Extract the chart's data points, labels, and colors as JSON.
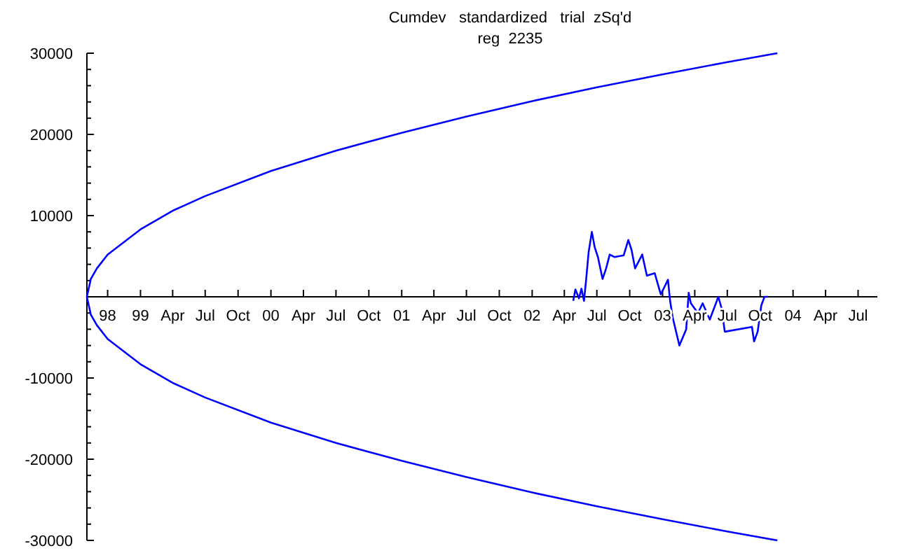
{
  "chart_data": {
    "type": "line",
    "title": "Cumdev   standardized   trial  zSq'd",
    "subtitle": "reg  2235",
    "xlim": [
      "1998-08-04",
      "2004-08-24"
    ],
    "xticks": [
      {
        "value": "1998-10-01",
        "label": "98"
      },
      {
        "value": "1999-01-01",
        "label": "99"
      },
      {
        "value": "1999-04-01",
        "label": "Apr"
      },
      {
        "value": "1999-07-01",
        "label": "Jul"
      },
      {
        "value": "1999-10-01",
        "label": "Oct"
      },
      {
        "value": "2000-01-01",
        "label": "00"
      },
      {
        "value": "2000-04-01",
        "label": "Apr"
      },
      {
        "value": "2000-07-01",
        "label": "Jul"
      },
      {
        "value": "2000-10-01",
        "label": "Oct"
      },
      {
        "value": "2001-01-01",
        "label": "01"
      },
      {
        "value": "2001-04-01",
        "label": "Apr"
      },
      {
        "value": "2001-07-01",
        "label": "Jul"
      },
      {
        "value": "2001-10-01",
        "label": "Oct"
      },
      {
        "value": "2002-01-01",
        "label": "02"
      },
      {
        "value": "2002-04-01",
        "label": "Apr"
      },
      {
        "value": "2002-07-01",
        "label": "Jul"
      },
      {
        "value": "2002-10-01",
        "label": "Oct"
      },
      {
        "value": "2003-01-01",
        "label": "03"
      },
      {
        "value": "2003-04-01",
        "label": "Apr"
      },
      {
        "value": "2003-07-01",
        "label": "Jul"
      },
      {
        "value": "2003-10-01",
        "label": "Oct"
      },
      {
        "value": "2004-01-01",
        "label": "04"
      },
      {
        "value": "2004-04-01",
        "label": "Apr"
      },
      {
        "value": "2004-07-01",
        "label": "Jul"
      }
    ],
    "ylim": [
      -30000,
      30000
    ],
    "yticks": [
      -30000,
      {
        "value": -28000,
        "label": null
      },
      {
        "value": -26000,
        "label": null
      },
      {
        "value": -24000,
        "label": null
      },
      {
        "value": -22000,
        "label": null
      },
      -20000,
      {
        "value": -18000,
        "label": null
      },
      {
        "value": -16000,
        "label": null
      },
      {
        "value": -14000,
        "label": null
      },
      {
        "value": -12000,
        "label": null
      },
      -10000,
      {
        "value": -8000,
        "label": null
      },
      {
        "value": -6000,
        "label": null
      },
      {
        "value": -4000,
        "label": null
      },
      {
        "value": -2000,
        "label": null
      },
      {
        "value": 0,
        "label": null
      },
      {
        "value": 2000,
        "label": null
      },
      {
        "value": 4000,
        "label": null
      },
      {
        "value": 6000,
        "label": null
      },
      {
        "value": 8000,
        "label": null
      },
      10000,
      {
        "value": 12000,
        "label": null
      },
      {
        "value": 14000,
        "label": null
      },
      {
        "value": 16000,
        "label": null
      },
      {
        "value": 18000,
        "label": null
      },
      20000,
      {
        "value": 22000,
        "label": null
      },
      {
        "value": 24000,
        "label": null
      },
      {
        "value": 26000,
        "label": null
      },
      {
        "value": 28000,
        "label": null
      },
      30000
    ],
    "line_style": "solid",
    "series": [
      {
        "color": "#0000ff",
        "x": [
          "2003-11-18",
          "2003-07-01",
          "2003-01-01",
          "2002-07-01",
          "2002-01-01",
          "2001-07-01",
          "2001-01-01",
          "2000-07-01",
          "2000-01-01",
          "1999-07-01",
          "1999-04-01",
          "1999-01-01",
          "1998-10-01",
          "1998-09-01",
          "1998-08-15",
          "1998-08-04",
          "1998-08-15",
          "1998-09-01",
          "1998-10-01",
          "1999-01-01",
          "1999-04-01",
          "1999-07-01",
          "2000-01-01",
          "2000-07-01",
          "2001-01-01",
          "2001-07-01",
          "2002-01-01",
          "2002-07-01",
          "2003-01-01",
          "2003-07-01",
          "2003-11-18"
        ],
        "values": [
          -30000,
          -28900,
          -27400,
          -25800,
          -24100,
          -22200,
          -20200,
          -18000,
          -15500,
          -12400,
          -10600,
          -8300,
          -5200,
          -3500,
          -2200,
          0,
          2200,
          3500,
          5200,
          8300,
          10600,
          12400,
          15500,
          18000,
          20200,
          22200,
          24100,
          25800,
          27400,
          28900,
          30000
        ]
      },
      {
        "color": "#0000ff",
        "x": [
          "2002-04-26",
          "2002-05-02",
          "2002-05-12",
          "2002-05-19",
          "2002-05-26",
          "2002-06-01",
          "2002-06-08",
          "2002-06-17",
          "2002-06-25",
          "2002-07-04",
          "2002-07-17",
          "2002-07-27",
          "2002-08-06",
          "2002-08-19",
          "2002-09-14",
          "2002-09-27",
          "2002-10-06",
          "2002-10-16",
          "2002-11-05",
          "2002-11-18",
          "2002-12-10",
          "2002-12-27",
          "2003-01-16",
          "2003-01-22",
          "2003-01-29",
          "2003-02-17",
          "2003-03-08",
          "2003-03-15",
          "2003-03-21",
          "2003-04-10",
          "2003-04-23",
          "2003-05-13",
          "2003-06-06",
          "2003-06-15",
          "2003-06-24",
          "2003-09-08",
          "2003-09-14",
          "2003-09-24",
          "2003-10-04",
          "2003-10-13",
          "2003-10-23"
        ],
        "values": [
          -500,
          900,
          -200,
          1000,
          -500,
          2100,
          5500,
          8000,
          6100,
          4900,
          2200,
          3500,
          5200,
          4900,
          5100,
          7000,
          5800,
          3500,
          5200,
          2600,
          2900,
          300,
          2100,
          -500,
          -2500,
          -6000,
          -4000,
          500,
          -800,
          -2000,
          -800,
          -2800,
          0,
          -1400,
          -4300,
          -3700,
          -5500,
          -4300,
          -1100,
          0,
          0
        ]
      }
    ]
  }
}
